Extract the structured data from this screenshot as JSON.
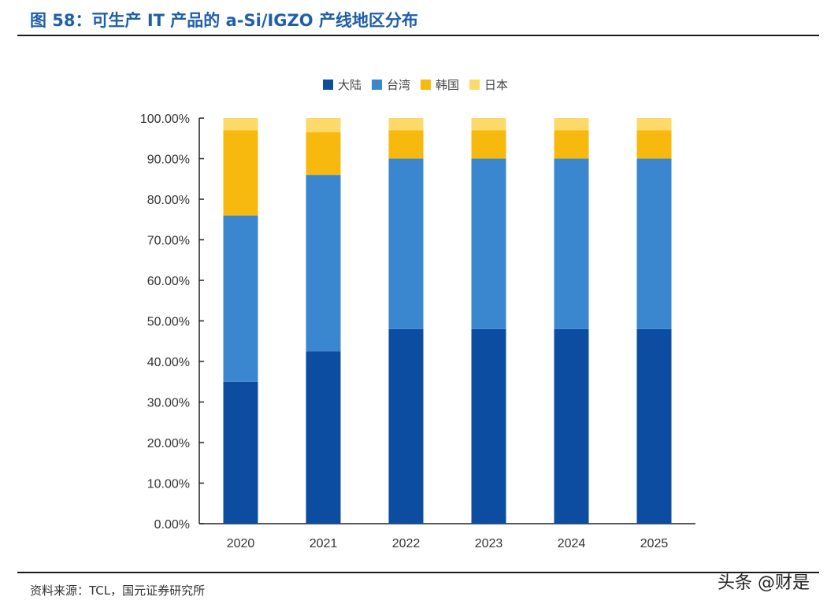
{
  "title": "图 58：可生产 IT 产品的 a-Si/IGZO 产线地区分布",
  "source": "资料来源：TCL，国元证券研究所",
  "watermark": "头条 @财是",
  "chart_data": {
    "type": "bar",
    "stacked": true,
    "categories": [
      "2020",
      "2021",
      "2022",
      "2023",
      "2024",
      "2025"
    ],
    "series": [
      {
        "name": "大陆",
        "color": "#0c4da2",
        "values": [
          35,
          42.5,
          48,
          48,
          48,
          48
        ]
      },
      {
        "name": "台湾",
        "color": "#3a87d0",
        "values": [
          41,
          43.5,
          42,
          42,
          42,
          42
        ]
      },
      {
        "name": "韩国",
        "color": "#f8b90f",
        "values": [
          21,
          10.5,
          7,
          7,
          7,
          7
        ]
      },
      {
        "name": "日本",
        "color": "#fdd96a",
        "values": [
          3,
          3.5,
          3,
          3,
          3,
          3
        ]
      }
    ],
    "ylim": [
      0,
      100
    ],
    "yticks": [
      "0.00%",
      "10.00%",
      "20.00%",
      "30.00%",
      "40.00%",
      "50.00%",
      "60.00%",
      "70.00%",
      "80.00%",
      "90.00%",
      "100.00%"
    ],
    "legend": "top",
    "grid": false
  }
}
